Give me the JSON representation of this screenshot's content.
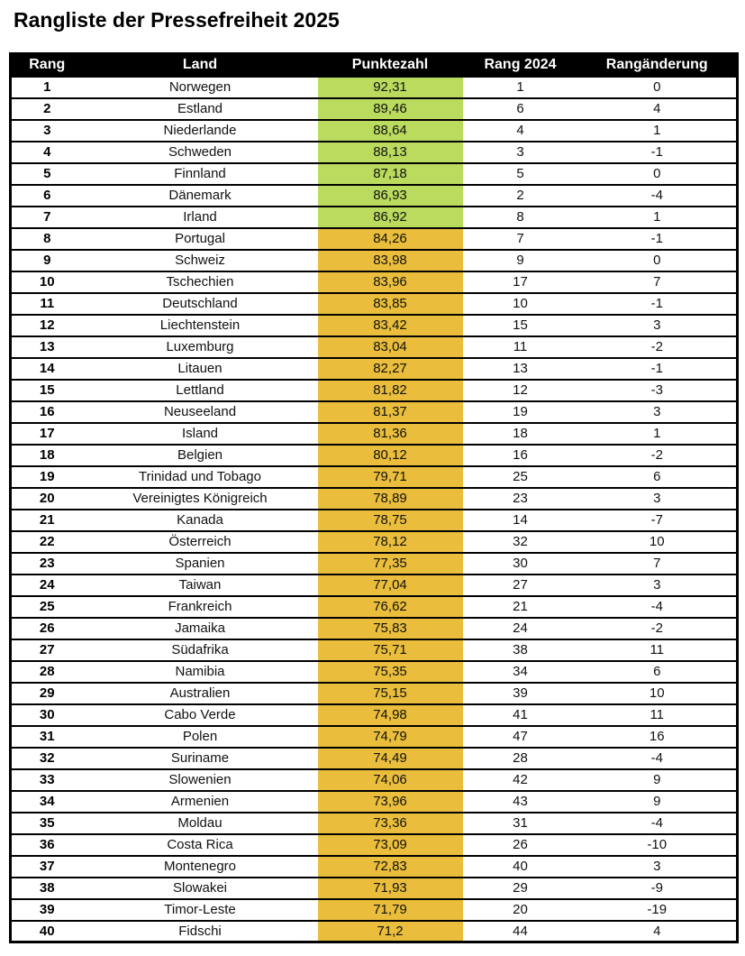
{
  "page": {
    "title": "Rangliste der Pressefreiheit 2025"
  },
  "chart_data": {
    "type": "table",
    "title": "Rangliste der Pressefreiheit 2025",
    "columns": [
      "Rang",
      "Land",
      "Punktezahl",
      "Rang 2024",
      "Rangänderung"
    ],
    "bands": {
      "green": "#badb5e",
      "orange": "#eabe3c"
    },
    "layout": {
      "header_bg": "#000000",
      "header_text": "#ffffff",
      "row_border": "#000000",
      "score_column_colored": true,
      "green_band_ranks": "1-7",
      "orange_band_ranks": "8-40"
    },
    "rows": [
      {
        "rang": "1",
        "land": "Norwegen",
        "punktezahl": "92,31",
        "rang2024": "1",
        "aenderung": "0",
        "band": "green"
      },
      {
        "rang": "2",
        "land": "Estland",
        "punktezahl": "89,46",
        "rang2024": "6",
        "aenderung": "4",
        "band": "green"
      },
      {
        "rang": "3",
        "land": "Niederlande",
        "punktezahl": "88,64",
        "rang2024": "4",
        "aenderung": "1",
        "band": "green"
      },
      {
        "rang": "4",
        "land": "Schweden",
        "punktezahl": "88,13",
        "rang2024": "3",
        "aenderung": "-1",
        "band": "green"
      },
      {
        "rang": "5",
        "land": "Finnland",
        "punktezahl": "87,18",
        "rang2024": "5",
        "aenderung": "0",
        "band": "green"
      },
      {
        "rang": "6",
        "land": "Dänemark",
        "punktezahl": "86,93",
        "rang2024": "2",
        "aenderung": "-4",
        "band": "green"
      },
      {
        "rang": "7",
        "land": "Irland",
        "punktezahl": "86,92",
        "rang2024": "8",
        "aenderung": "1",
        "band": "green"
      },
      {
        "rang": "8",
        "land": "Portugal",
        "punktezahl": "84,26",
        "rang2024": "7",
        "aenderung": "-1",
        "band": "orange"
      },
      {
        "rang": "9",
        "land": "Schweiz",
        "punktezahl": "83,98",
        "rang2024": "9",
        "aenderung": "0",
        "band": "orange"
      },
      {
        "rang": "10",
        "land": "Tschechien",
        "punktezahl": "83,96",
        "rang2024": "17",
        "aenderung": "7",
        "band": "orange"
      },
      {
        "rang": "11",
        "land": "Deutschland",
        "punktezahl": "83,85",
        "rang2024": "10",
        "aenderung": "-1",
        "band": "orange"
      },
      {
        "rang": "12",
        "land": "Liechtenstein",
        "punktezahl": "83,42",
        "rang2024": "15",
        "aenderung": "3",
        "band": "orange"
      },
      {
        "rang": "13",
        "land": "Luxemburg",
        "punktezahl": "83,04",
        "rang2024": "11",
        "aenderung": "-2",
        "band": "orange"
      },
      {
        "rang": "14",
        "land": "Litauen",
        "punktezahl": "82,27",
        "rang2024": "13",
        "aenderung": "-1",
        "band": "orange"
      },
      {
        "rang": "15",
        "land": "Lettland",
        "punktezahl": "81,82",
        "rang2024": "12",
        "aenderung": "-3",
        "band": "orange"
      },
      {
        "rang": "16",
        "land": "Neuseeland",
        "punktezahl": "81,37",
        "rang2024": "19",
        "aenderung": "3",
        "band": "orange"
      },
      {
        "rang": "17",
        "land": "Island",
        "punktezahl": "81,36",
        "rang2024": "18",
        "aenderung": "1",
        "band": "orange"
      },
      {
        "rang": "18",
        "land": "Belgien",
        "punktezahl": "80,12",
        "rang2024": "16",
        "aenderung": "-2",
        "band": "orange"
      },
      {
        "rang": "19",
        "land": "Trinidad und Tobago",
        "punktezahl": "79,71",
        "rang2024": "25",
        "aenderung": "6",
        "band": "orange"
      },
      {
        "rang": "20",
        "land": "Vereinigtes Königreich",
        "punktezahl": "78,89",
        "rang2024": "23",
        "aenderung": "3",
        "band": "orange"
      },
      {
        "rang": "21",
        "land": "Kanada",
        "punktezahl": "78,75",
        "rang2024": "14",
        "aenderung": "-7",
        "band": "orange"
      },
      {
        "rang": "22",
        "land": "Österreich",
        "punktezahl": "78,12",
        "rang2024": "32",
        "aenderung": "10",
        "band": "orange"
      },
      {
        "rang": "23",
        "land": "Spanien",
        "punktezahl": "77,35",
        "rang2024": "30",
        "aenderung": "7",
        "band": "orange"
      },
      {
        "rang": "24",
        "land": "Taiwan",
        "punktezahl": "77,04",
        "rang2024": "27",
        "aenderung": "3",
        "band": "orange"
      },
      {
        "rang": "25",
        "land": "Frankreich",
        "punktezahl": "76,62",
        "rang2024": "21",
        "aenderung": "-4",
        "band": "orange"
      },
      {
        "rang": "26",
        "land": "Jamaika",
        "punktezahl": "75,83",
        "rang2024": "24",
        "aenderung": "-2",
        "band": "orange"
      },
      {
        "rang": "27",
        "land": "Südafrika",
        "punktezahl": "75,71",
        "rang2024": "38",
        "aenderung": "11",
        "band": "orange"
      },
      {
        "rang": "28",
        "land": "Namibia",
        "punktezahl": "75,35",
        "rang2024": "34",
        "aenderung": "6",
        "band": "orange"
      },
      {
        "rang": "29",
        "land": "Australien",
        "punktezahl": "75,15",
        "rang2024": "39",
        "aenderung": "10",
        "band": "orange"
      },
      {
        "rang": "30",
        "land": "Cabo Verde",
        "punktezahl": "74,98",
        "rang2024": "41",
        "aenderung": "11",
        "band": "orange"
      },
      {
        "rang": "31",
        "land": "Polen",
        "punktezahl": "74,79",
        "rang2024": "47",
        "aenderung": "16",
        "band": "orange"
      },
      {
        "rang": "32",
        "land": "Suriname",
        "punktezahl": "74,49",
        "rang2024": "28",
        "aenderung": "-4",
        "band": "orange"
      },
      {
        "rang": "33",
        "land": "Slowenien",
        "punktezahl": "74,06",
        "rang2024": "42",
        "aenderung": "9",
        "band": "orange"
      },
      {
        "rang": "34",
        "land": "Armenien",
        "punktezahl": "73,96",
        "rang2024": "43",
        "aenderung": "9",
        "band": "orange"
      },
      {
        "rang": "35",
        "land": "Moldau",
        "punktezahl": "73,36",
        "rang2024": "31",
        "aenderung": "-4",
        "band": "orange"
      },
      {
        "rang": "36",
        "land": "Costa Rica",
        "punktezahl": "73,09",
        "rang2024": "26",
        "aenderung": "-10",
        "band": "orange"
      },
      {
        "rang": "37",
        "land": "Montenegro",
        "punktezahl": "72,83",
        "rang2024": "40",
        "aenderung": "3",
        "band": "orange"
      },
      {
        "rang": "38",
        "land": "Slowakei",
        "punktezahl": "71,93",
        "rang2024": "29",
        "aenderung": "-9",
        "band": "orange"
      },
      {
        "rang": "39",
        "land": "Timor-Leste",
        "punktezahl": "71,79",
        "rang2024": "20",
        "aenderung": "-19",
        "band": "orange"
      },
      {
        "rang": "40",
        "land": "Fidschi",
        "punktezahl": "71,2",
        "rang2024": "44",
        "aenderung": "4",
        "band": "orange"
      }
    ]
  }
}
